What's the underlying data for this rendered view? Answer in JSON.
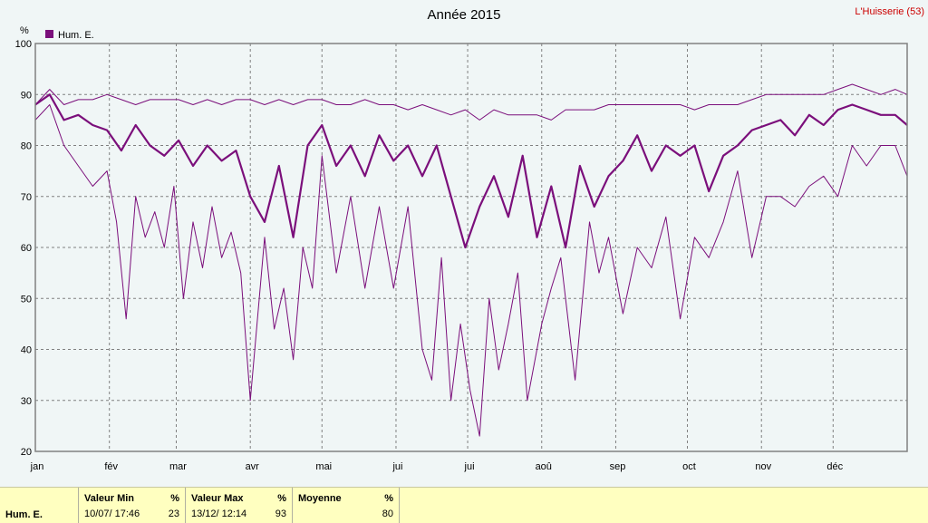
{
  "chart_data": {
    "type": "line",
    "title": "Année 2015",
    "station": "L'Huisserie (53)",
    "ylabel": "%",
    "ylim": [
      20,
      100
    ],
    "yticks": [
      20,
      30,
      40,
      50,
      60,
      70,
      80,
      90,
      100
    ],
    "x_range_days": [
      0,
      365
    ],
    "x_ticks": [
      {
        "label": "jan",
        "day": 0
      },
      {
        "label": "fév",
        "day": 31
      },
      {
        "label": "mar",
        "day": 59
      },
      {
        "label": "avr",
        "day": 90
      },
      {
        "label": "mai",
        "day": 120
      },
      {
        "label": "jui",
        "day": 151
      },
      {
        "label": "jui",
        "day": 181
      },
      {
        "label": "aoû",
        "day": 212
      },
      {
        "label": "sep",
        "day": 243
      },
      {
        "label": "oct",
        "day": 273
      },
      {
        "label": "nov",
        "day": 304
      },
      {
        "label": "déc",
        "day": 334
      }
    ],
    "legend": [
      {
        "name": "Hum. E.",
        "color": "#7b0f7b"
      }
    ],
    "legend_position": "top-left",
    "grid": true,
    "series": [
      {
        "name": "Hum. E. max",
        "x": [
          0,
          6,
          12,
          18,
          24,
          30,
          36,
          42,
          48,
          54,
          60,
          66,
          72,
          78,
          84,
          90,
          96,
          102,
          108,
          114,
          120,
          126,
          132,
          138,
          144,
          150,
          156,
          162,
          168,
          174,
          180,
          186,
          192,
          198,
          204,
          210,
          216,
          222,
          228,
          234,
          240,
          246,
          252,
          258,
          264,
          270,
          276,
          282,
          288,
          294,
          300,
          306,
          312,
          318,
          324,
          330,
          336,
          342,
          348,
          354,
          360,
          365
        ],
        "y": [
          88,
          91,
          88,
          89,
          89,
          90,
          89,
          88,
          89,
          89,
          89,
          88,
          89,
          88,
          89,
          89,
          88,
          89,
          88,
          89,
          89,
          88,
          88,
          89,
          88,
          88,
          87,
          88,
          87,
          86,
          87,
          85,
          87,
          86,
          86,
          86,
          85,
          87,
          87,
          87,
          88,
          88,
          88,
          88,
          88,
          88,
          87,
          88,
          88,
          88,
          89,
          90,
          90,
          90,
          90,
          90,
          91,
          92,
          91,
          90,
          91,
          90
        ]
      },
      {
        "name": "Hum. E. moyenne",
        "x": [
          0,
          6,
          12,
          18,
          24,
          30,
          36,
          42,
          48,
          54,
          60,
          66,
          72,
          78,
          84,
          90,
          96,
          102,
          108,
          114,
          120,
          126,
          132,
          138,
          144,
          150,
          156,
          162,
          168,
          174,
          180,
          186,
          192,
          198,
          204,
          210,
          216,
          222,
          228,
          234,
          240,
          246,
          252,
          258,
          264,
          270,
          276,
          282,
          288,
          294,
          300,
          306,
          312,
          318,
          324,
          330,
          336,
          342,
          348,
          354,
          360,
          365
        ],
        "y": [
          88,
          90,
          85,
          86,
          84,
          83,
          79,
          84,
          80,
          78,
          81,
          76,
          80,
          77,
          79,
          70,
          65,
          76,
          62,
          80,
          84,
          76,
          80,
          74,
          82,
          77,
          80,
          74,
          80,
          70,
          60,
          68,
          74,
          66,
          78,
          62,
          72,
          60,
          76,
          68,
          74,
          77,
          82,
          75,
          80,
          78,
          80,
          71,
          78,
          80,
          83,
          84,
          85,
          82,
          86,
          84,
          87,
          88,
          87,
          86,
          86,
          84
        ]
      },
      {
        "name": "Hum. E. min",
        "x": [
          0,
          6,
          12,
          18,
          24,
          30,
          34,
          38,
          42,
          46,
          50,
          54,
          58,
          62,
          66,
          70,
          74,
          78,
          82,
          86,
          90,
          96,
          100,
          104,
          108,
          112,
          116,
          120,
          126,
          132,
          138,
          144,
          150,
          156,
          162,
          166,
          170,
          174,
          178,
          182,
          186,
          190,
          194,
          198,
          202,
          206,
          212,
          216,
          220,
          226,
          232,
          236,
          240,
          246,
          252,
          258,
          264,
          270,
          276,
          282,
          288,
          294,
          300,
          306,
          312,
          318,
          324,
          330,
          336,
          342,
          348,
          354,
          360,
          365
        ],
        "y": [
          85,
          88,
          80,
          76,
          72,
          75,
          65,
          46,
          70,
          62,
          67,
          60,
          72,
          50,
          65,
          56,
          68,
          58,
          63,
          55,
          30,
          62,
          44,
          52,
          38,
          60,
          52,
          78,
          55,
          70,
          52,
          68,
          52,
          68,
          40,
          34,
          58,
          30,
          45,
          32,
          23,
          50,
          36,
          45,
          55,
          30,
          45,
          52,
          58,
          34,
          65,
          55,
          62,
          47,
          60,
          56,
          66,
          46,
          62,
          58,
          65,
          75,
          58,
          70,
          70,
          68,
          72,
          74,
          70,
          80,
          76,
          80,
          80,
          74
        ]
      }
    ]
  },
  "stats": {
    "row_label": "Hum. E.",
    "min_label": "Valeur Min",
    "min_unit": "%",
    "min_time": "10/07/ 17:46",
    "min_value": "23",
    "max_label": "Valeur Max",
    "max_unit": "%",
    "max_time": "13/12/ 12:14",
    "max_value": "93",
    "avg_label": "Moyenne",
    "avg_unit": "%",
    "avg_value": "80"
  },
  "colors": {
    "series": "#7b0f7b",
    "background": "#f0f6f6",
    "grid": "#808080",
    "stats_bg": "#ffffc0",
    "station": "#cc0000"
  }
}
